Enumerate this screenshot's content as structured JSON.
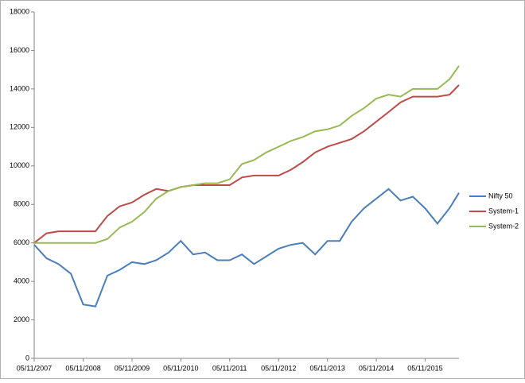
{
  "chart_data": {
    "type": "line",
    "x": [
      "05/11/2007",
      "05/02/2008",
      "05/05/2008",
      "05/08/2008",
      "05/11/2008",
      "05/02/2009",
      "05/05/2009",
      "05/08/2009",
      "05/11/2009",
      "05/02/2010",
      "05/05/2010",
      "05/08/2010",
      "05/11/2010",
      "05/02/2011",
      "05/05/2011",
      "05/08/2011",
      "05/11/2011",
      "05/02/2012",
      "05/05/2012",
      "05/08/2012",
      "05/11/2012",
      "05/02/2013",
      "05/05/2013",
      "05/08/2013",
      "05/11/2013",
      "05/02/2014",
      "05/05/2014",
      "05/08/2014",
      "05/11/2014",
      "05/02/2015",
      "05/05/2015",
      "05/08/2015",
      "05/11/2015",
      "05/02/2016",
      "05/05/2016",
      "15/07/2016"
    ],
    "series": [
      {
        "name": "Nifty 50",
        "color": "#4a7ebb",
        "values": [
          5900,
          5200,
          4900,
          4400,
          2800,
          2700,
          4300,
          4600,
          5000,
          4900,
          5100,
          5500,
          6100,
          5400,
          5500,
          5100,
          5100,
          5400,
          4900,
          5300,
          5700,
          5900,
          6000,
          5400,
          6100,
          6100,
          7100,
          7800,
          8300,
          8800,
          8200,
          8400,
          7800,
          7000,
          7800,
          8600
        ]
      },
      {
        "name": "System-1",
        "color": "#be4b48",
        "values": [
          6000,
          6500,
          6600,
          6600,
          6600,
          6600,
          7400,
          7900,
          8100,
          8500,
          8800,
          8700,
          8900,
          9000,
          9000,
          9000,
          9000,
          9400,
          9500,
          9500,
          9500,
          9800,
          10200,
          10700,
          11000,
          11200,
          11400,
          11800,
          12300,
          12800,
          13300,
          13600,
          13600,
          13600,
          13700,
          14200
        ]
      },
      {
        "name": "System-2",
        "color": "#98b954",
        "values": [
          6000,
          6000,
          6000,
          6000,
          6000,
          6000,
          6200,
          6800,
          7100,
          7600,
          8300,
          8700,
          8900,
          9000,
          9100,
          9100,
          9300,
          10100,
          10300,
          10700,
          11000,
          11300,
          11500,
          11800,
          11900,
          12100,
          12600,
          13000,
          13500,
          13700,
          13600,
          14000,
          14000,
          14000,
          14500,
          15200
        ]
      }
    ],
    "xlim": [
      "05/11/2007",
      "15/07/2016"
    ],
    "xticks": [
      "05/11/2007",
      "05/11/2008",
      "05/11/2009",
      "05/11/2010",
      "05/11/2011",
      "05/11/2012",
      "05/11/2013",
      "05/11/2014",
      "05/11/2015"
    ],
    "ylim": [
      0,
      18000
    ],
    "yticks": [
      0,
      2000,
      4000,
      6000,
      8000,
      10000,
      12000,
      14000,
      16000,
      18000
    ],
    "legend": "right"
  }
}
